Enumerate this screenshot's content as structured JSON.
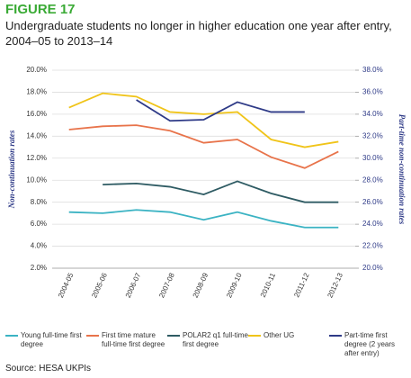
{
  "chart_data": {
    "type": "line",
    "title": "FIGURE 17",
    "subtitle": "Undergraduate students no longer in higher education one year after entry, 2004–05 to 2013–14",
    "y_label": "Non-continuation rates",
    "y2_label": "Part-time non-continuation rates",
    "source": "Source: HESA UKPIs",
    "categories": [
      "2004-05",
      "2005-06",
      "2006-07",
      "2007-08",
      "2008-09",
      "2009-10",
      "2010-11",
      "2011-12",
      "2012-13"
    ],
    "ylim": [
      2,
      20
    ],
    "yticks": [
      {
        "value": 20,
        "label": "20.0%"
      },
      {
        "value": 18,
        "label": "18.0%"
      },
      {
        "value": 16,
        "label": "16.0%"
      },
      {
        "value": 14,
        "label": "14.0%"
      },
      {
        "value": 12,
        "label": "12.0%"
      },
      {
        "value": 10,
        "label": "10.0%"
      },
      {
        "value": 8,
        "label": "8.0%"
      },
      {
        "value": 6,
        "label": "6.0%"
      },
      {
        "value": 4,
        "label": "4.0%"
      },
      {
        "value": 2,
        "label": "2.0%"
      }
    ],
    "y2lim": [
      20,
      38
    ],
    "y2ticks": [
      {
        "value": 38,
        "label": "38.0%"
      },
      {
        "value": 36,
        "label": "36.0%"
      },
      {
        "value": 34,
        "label": "34.0%"
      },
      {
        "value": 32,
        "label": "32.0%"
      },
      {
        "value": 30,
        "label": "30.0%"
      },
      {
        "value": 28,
        "label": "28.0%"
      },
      {
        "value": 26,
        "label": "26.0%"
      },
      {
        "value": 24,
        "label": "24.0%"
      },
      {
        "value": 22,
        "label": "22.0%"
      },
      {
        "value": 20,
        "label": "20.0%"
      }
    ],
    "grid": true,
    "series": [
      {
        "name": "Young full-time first degree",
        "color": "#3bb3c3",
        "values": [
          7.1,
          7.0,
          7.3,
          7.1,
          6.4,
          7.1,
          6.3,
          5.7,
          5.7
        ]
      },
      {
        "name": "First time mature full-time first degree",
        "color": "#e8734a",
        "values": [
          14.6,
          14.9,
          15.0,
          14.5,
          13.4,
          13.7,
          12.1,
          11.1,
          12.6
        ]
      },
      {
        "name": "POLAR2 q1 full-time first degree",
        "color": "#2e5b63",
        "values": [
          null,
          9.6,
          9.7,
          9.4,
          8.7,
          9.9,
          8.8,
          8.0,
          8.0
        ]
      },
      {
        "name": "Other UG",
        "color": "#f0c419",
        "values": [
          16.6,
          17.9,
          17.6,
          16.2,
          16.0,
          16.2,
          13.7,
          13.0,
          13.5
        ]
      },
      {
        "name": "Part-time first degree (2 years after entry)",
        "color": "#2e3a87",
        "axis": "y2",
        "values": [
          null,
          null,
          35.3,
          33.4,
          33.5,
          35.1,
          34.2,
          34.2,
          null
        ]
      }
    ]
  }
}
